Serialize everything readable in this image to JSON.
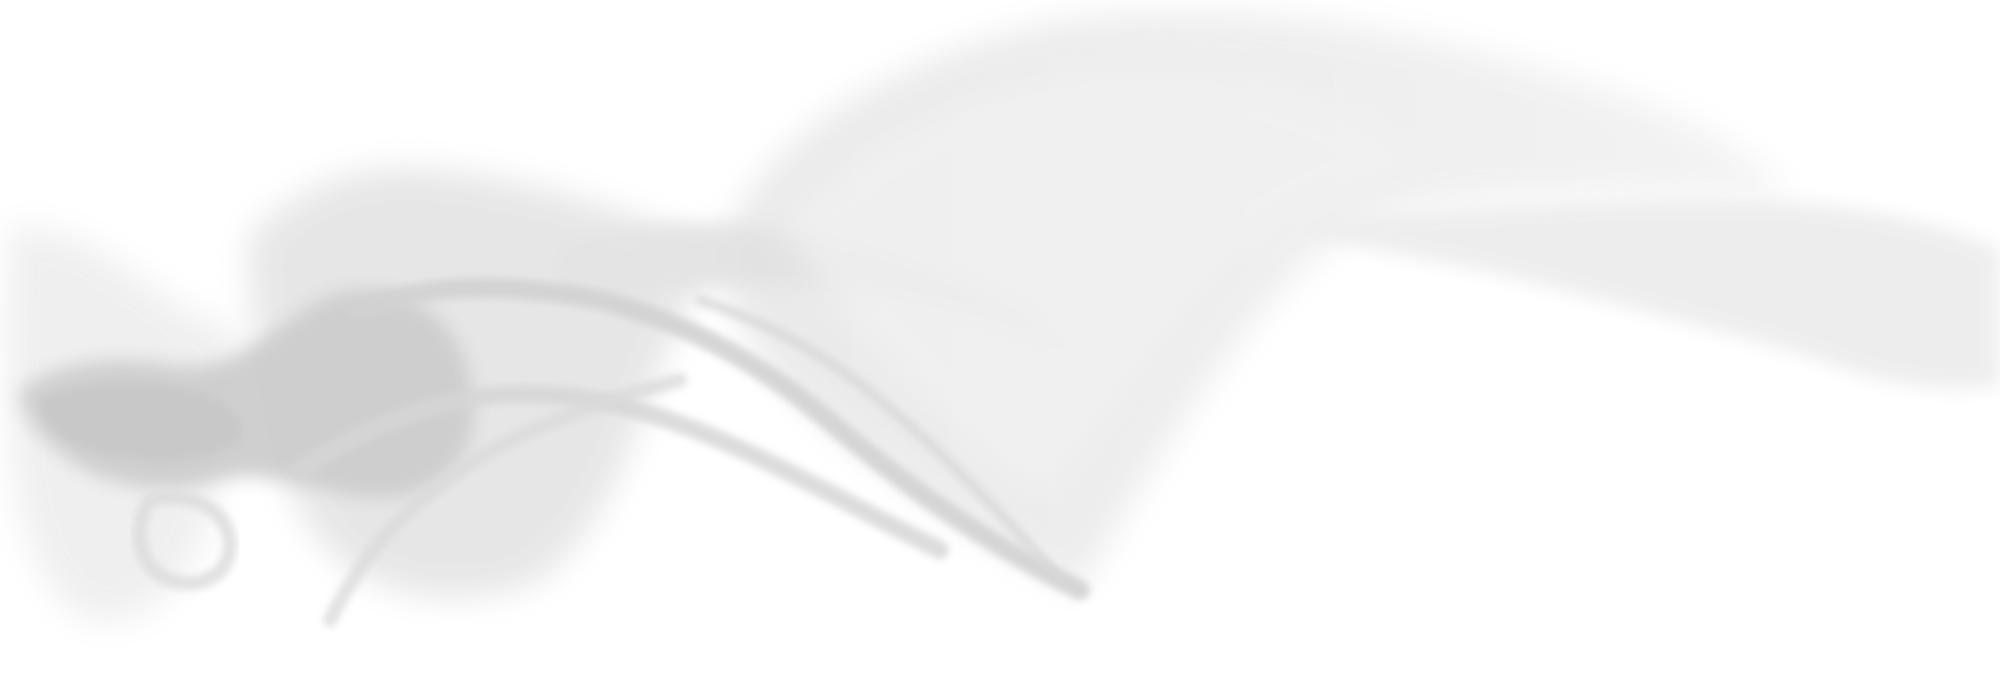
{
  "image": {
    "subject": "smoke-fabric",
    "colors": {
      "background": "#ffffff",
      "smoke_dark": "#cfcfcf",
      "smoke_mid": "#dedede",
      "smoke_light": "#ebebeb",
      "smoke_faint": "#f3f3f3"
    }
  }
}
